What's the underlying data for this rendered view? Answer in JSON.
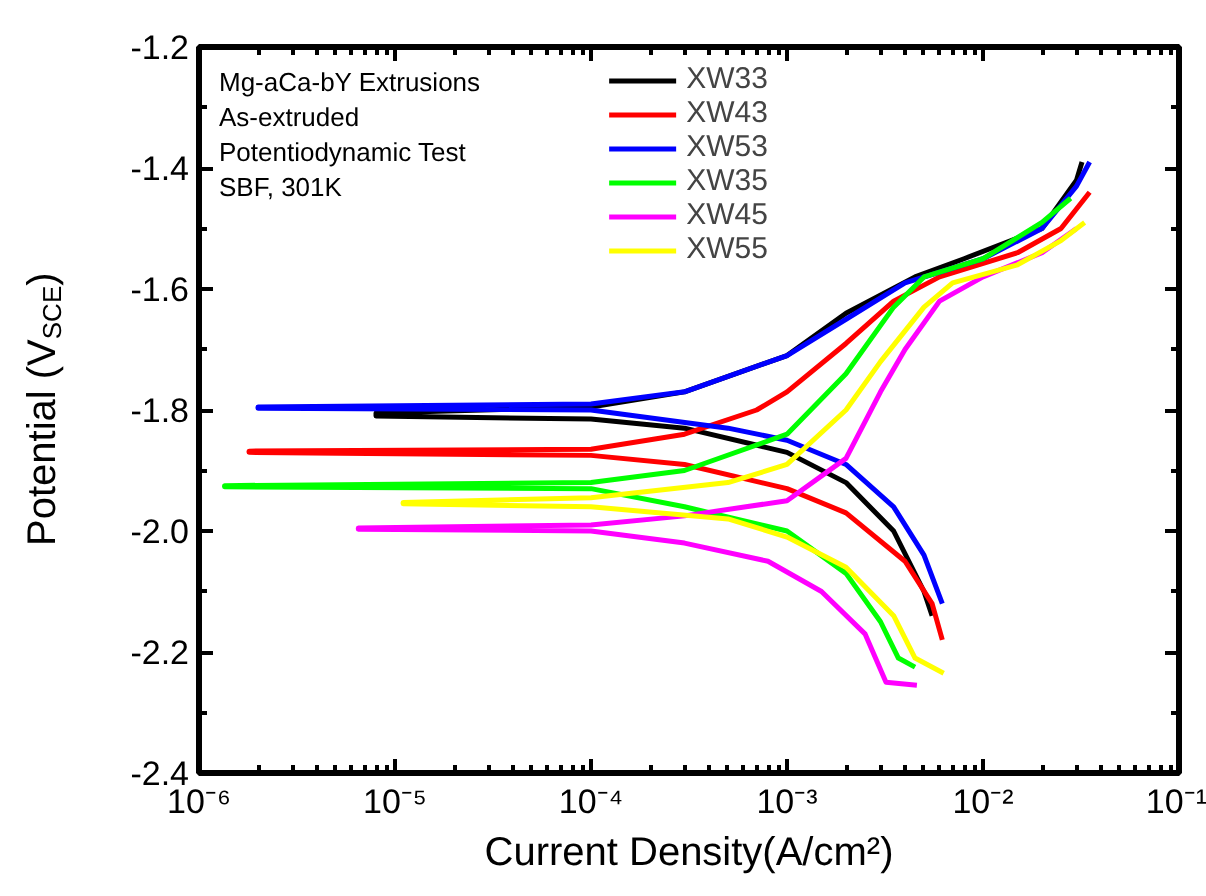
{
  "chart_data": {
    "type": "line",
    "xlabel": "Current Density(A/cm²)",
    "ylabel": "Potential (V$_{SCE}$)",
    "log": "x",
    "grid": false,
    "legend": "top",
    "marker": "none",
    "line_style": "solid",
    "xlim": [
      1e-06,
      0.1
    ],
    "ylim": [
      -2.4,
      -1.2
    ],
    "xticks": [
      {
        "value": 1e-06,
        "label": "10⁻⁶"
      },
      {
        "value": 1e-05,
        "label": "10⁻⁵"
      },
      {
        "value": 0.0001,
        "label": "10⁻⁴"
      },
      {
        "value": 0.001,
        "label": "10⁻³"
      },
      {
        "value": 0.01,
        "label": "10⁻²"
      },
      {
        "value": 0.1,
        "label": "10⁻¹"
      }
    ],
    "yticks": [
      {
        "value": -2.4,
        "label": "-2.4"
      },
      {
        "value": -2.2,
        "label": "-2.2"
      },
      {
        "value": -2.0,
        "label": "-2.0"
      },
      {
        "value": -1.8,
        "label": "-1.8"
      },
      {
        "value": -1.6,
        "label": "-1.6"
      },
      {
        "value": -1.4,
        "label": "-1.4"
      },
      {
        "value": -1.2,
        "label": "-1.2"
      }
    ],
    "annotations": [
      "Mg-aCa-bY Extrusions",
      "As-extruded",
      "Potentiodynamic Test",
      "SBF, 301K"
    ],
    "series": [
      {
        "name": "XW33",
        "color": "#000000",
        "x": [
          0.0055,
          0.005,
          0.0035,
          0.002,
          0.001,
          0.0003,
          0.0001,
          8e-06,
          8e-06,
          0.0001,
          0.0003,
          0.001,
          0.002,
          0.0045,
          0.008,
          0.02,
          0.03,
          0.032
        ],
        "values": [
          -2.14,
          -2.1,
          -2.0,
          -1.92,
          -1.87,
          -1.83,
          -1.815,
          -1.81,
          -1.805,
          -1.795,
          -1.77,
          -1.71,
          -1.64,
          -1.58,
          -1.55,
          -1.5,
          -1.42,
          -1.39
        ]
      },
      {
        "name": "XW43",
        "color": "#ff0000",
        "x": [
          0.0062,
          0.0055,
          0.004,
          0.002,
          0.001,
          0.0003,
          0.0001,
          1.8e-06,
          1.8e-06,
          0.0001,
          0.0003,
          0.0007,
          0.001,
          0.002,
          0.0035,
          0.006,
          0.015,
          0.025,
          0.035
        ],
        "values": [
          -2.18,
          -2.12,
          -2.05,
          -1.97,
          -1.93,
          -1.89,
          -1.875,
          -1.87,
          -1.868,
          -1.865,
          -1.84,
          -1.8,
          -1.77,
          -1.69,
          -1.62,
          -1.58,
          -1.54,
          -1.5,
          -1.44
        ]
      },
      {
        "name": "XW53",
        "color": "#0000ff",
        "x": [
          0.0062,
          0.005,
          0.0035,
          0.002,
          0.001,
          0.0005,
          0.0001,
          2e-06,
          2e-06,
          0.0001,
          0.0003,
          0.001,
          0.002,
          0.004,
          0.01,
          0.02,
          0.03,
          0.035
        ],
        "values": [
          -2.12,
          -2.04,
          -1.96,
          -1.89,
          -1.85,
          -1.83,
          -1.8,
          -1.797,
          -1.795,
          -1.79,
          -1.77,
          -1.71,
          -1.65,
          -1.59,
          -1.55,
          -1.5,
          -1.43,
          -1.39
        ]
      },
      {
        "name": "XW35",
        "color": "#00ff00",
        "x": [
          0.0045,
          0.0037,
          0.003,
          0.002,
          0.001,
          0.0003,
          0.0001,
          1.35e-06,
          1.35e-06,
          0.0001,
          0.0003,
          0.001,
          0.002,
          0.0035,
          0.005,
          0.01,
          0.02,
          0.028
        ],
        "values": [
          -2.225,
          -2.21,
          -2.15,
          -2.07,
          -2.0,
          -1.96,
          -1.93,
          -1.927,
          -1.925,
          -1.92,
          -1.9,
          -1.84,
          -1.74,
          -1.63,
          -1.58,
          -1.55,
          -1.49,
          -1.45
        ]
      },
      {
        "name": "XW45",
        "color": "#ff00ff",
        "x": [
          0.0046,
          0.0032,
          0.0025,
          0.0015,
          0.0008,
          0.0003,
          0.0001,
          6.5e-06,
          6.5e-06,
          0.0001,
          0.0003,
          0.001,
          0.002,
          0.003,
          0.004,
          0.006,
          0.01,
          0.02,
          0.03
        ],
        "values": [
          -2.255,
          -2.25,
          -2.17,
          -2.1,
          -2.05,
          -2.02,
          -2.0,
          -1.997,
          -1.995,
          -1.99,
          -1.975,
          -1.95,
          -1.88,
          -1.77,
          -1.7,
          -1.62,
          -1.58,
          -1.54,
          -1.5
        ]
      },
      {
        "name": "XW55",
        "color": "#ffff00",
        "x": [
          0.0063,
          0.0045,
          0.0035,
          0.002,
          0.001,
          0.0005,
          0.0001,
          1.1e-05,
          1.1e-05,
          0.0001,
          0.0005,
          0.001,
          0.002,
          0.003,
          0.005,
          0.007,
          0.015,
          0.025,
          0.033
        ],
        "values": [
          -2.235,
          -2.21,
          -2.14,
          -2.06,
          -2.01,
          -1.98,
          -1.96,
          -1.955,
          -1.953,
          -1.945,
          -1.92,
          -1.89,
          -1.8,
          -1.72,
          -1.63,
          -1.59,
          -1.56,
          -1.52,
          -1.49
        ]
      }
    ]
  }
}
